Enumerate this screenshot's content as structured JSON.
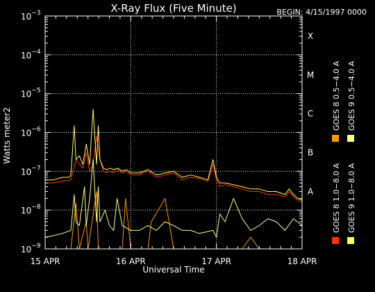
{
  "chart_data": {
    "type": "line",
    "title": "X-Ray Flux (Five Minute)",
    "begin_label": "BEGIN: 4/15/1997 0000",
    "xlabel": "Universal Time",
    "ylabel": "Watts meter2",
    "y_scale": "log",
    "ylim": [
      1e-09,
      0.001
    ],
    "xlim_days": [
      0,
      3
    ],
    "x_tick_labels": [
      "15 APR",
      "16 APR",
      "17 APR",
      "18 APR"
    ],
    "y_ticks": [
      {
        "base": "10",
        "exp": "−9"
      },
      {
        "base": "10",
        "exp": "−8"
      },
      {
        "base": "10",
        "exp": "−7"
      },
      {
        "base": "10",
        "exp": "−6"
      },
      {
        "base": "10",
        "exp": "−5"
      },
      {
        "base": "10",
        "exp": "−4"
      },
      {
        "base": "10",
        "exp": "−3"
      }
    ],
    "flare_classes": [
      "A",
      "B",
      "C",
      "M",
      "X"
    ],
    "grid": "dotted",
    "series": [
      {
        "name": "GOES 8  1.0−8.0 A",
        "color": "#ff3300",
        "x": [
          0.0,
          0.1,
          0.2,
          0.3,
          0.36,
          0.4,
          0.44,
          0.48,
          0.52,
          0.56,
          0.6,
          0.64,
          0.68,
          0.72,
          0.76,
          0.8,
          0.85,
          0.9,
          0.95,
          1.0,
          1.1,
          1.2,
          1.3,
          1.4,
          1.5,
          1.6,
          1.7,
          1.8,
          1.9,
          1.96,
          2.0,
          2.04,
          2.1,
          2.2,
          2.3,
          2.4,
          2.5,
          2.6,
          2.7,
          2.8,
          2.85,
          2.9,
          2.95,
          3.0
        ],
        "values": [
          5e-08,
          5e-08,
          5.5e-08,
          6e-08,
          2e-07,
          1.5e-07,
          1.2e-07,
          3e-07,
          1e-07,
          1.5e-07,
          8e-07,
          2e-07,
          1e-07,
          9e-08,
          1e-07,
          9e-08,
          1.1e-07,
          9e-08,
          1e-07,
          8e-08,
          8e-08,
          1e-07,
          7e-08,
          8e-08,
          9e-08,
          6e-08,
          7e-08,
          6.5e-08,
          5.5e-08,
          1.5e-07,
          6e-08,
          4e-08,
          4.5e-08,
          4e-08,
          3.5e-08,
          3e-08,
          3e-08,
          2.5e-08,
          2.5e-08,
          2.2e-08,
          3e-08,
          2.2e-08,
          1.8e-08,
          1.6e-08
        ]
      },
      {
        "name": "GOES 8  0.5−4.0 A",
        "color": "#ff9900",
        "x": [
          0.0,
          0.2,
          0.3,
          0.36,
          0.4,
          0.48,
          0.5,
          0.6,
          0.62,
          0.7,
          0.9,
          0.94,
          1.0,
          1.2,
          1.24,
          1.4,
          1.5,
          1.6,
          1.7,
          1.8,
          1.9,
          1.96,
          2.0,
          2.3,
          2.4,
          2.5,
          2.6,
          2.8,
          2.9,
          3.0
        ],
        "values": [
          1e-09,
          1e-09,
          1e-09,
          1.5e-08,
          1e-09,
          5e-09,
          1e-09,
          3e-08,
          1e-09,
          1e-09,
          1e-09,
          2e-08,
          1e-09,
          1e-09,
          5e-09,
          2e-08,
          1e-09,
          1e-09,
          1e-09,
          1e-09,
          1e-09,
          1e-09,
          1e-09,
          1e-09,
          2e-09,
          1e-09,
          1e-09,
          1e-09,
          1e-09,
          1e-09
        ]
      },
      {
        "name": "GOES 9  1.0−8.0 A",
        "color": "#ffff55",
        "x": [
          0.0,
          0.1,
          0.2,
          0.28,
          0.3,
          0.34,
          0.36,
          0.4,
          0.44,
          0.48,
          0.52,
          0.56,
          0.6,
          0.62,
          0.64,
          0.68,
          0.72,
          0.76,
          0.8,
          0.85,
          0.9,
          0.95,
          1.0,
          1.1,
          1.2,
          1.3,
          1.4,
          1.5,
          1.6,
          1.7,
          1.8,
          1.9,
          1.96,
          2.0,
          2.04,
          2.1,
          2.2,
          2.3,
          2.4,
          2.5,
          2.6,
          2.7,
          2.8,
          2.85,
          2.9,
          2.95,
          3.0
        ],
        "values": [
          6e-08,
          6e-08,
          7e-08,
          7e-08,
          8e-08,
          1.5e-06,
          2e-07,
          2.5e-07,
          1.5e-07,
          5e-07,
          1.5e-07,
          4e-06,
          1.5e-07,
          1.5e-06,
          2e-07,
          1.2e-07,
          1.1e-07,
          1.2e-07,
          1.1e-07,
          1.2e-07,
          1e-07,
          1.1e-07,
          9e-08,
          9e-08,
          1.1e-07,
          8e-08,
          9e-08,
          1e-07,
          7e-08,
          8e-08,
          7e-08,
          6e-08,
          2e-07,
          7e-08,
          5e-08,
          5e-08,
          4.5e-08,
          4e-08,
          3.5e-08,
          3.5e-08,
          3e-08,
          3e-08,
          2.5e-08,
          3.5e-08,
          2.5e-08,
          2e-08,
          1.8e-08
        ]
      },
      {
        "name": "GOES 9  0.5−4.0 A",
        "color": "#ffff88",
        "x": [
          0.0,
          0.1,
          0.2,
          0.3,
          0.34,
          0.36,
          0.4,
          0.46,
          0.48,
          0.52,
          0.56,
          0.6,
          0.62,
          0.64,
          0.7,
          0.75,
          0.8,
          0.84,
          0.9,
          1.0,
          1.1,
          1.2,
          1.3,
          1.4,
          1.5,
          1.6,
          1.7,
          1.8,
          1.96,
          2.0,
          2.04,
          2.1,
          2.2,
          2.3,
          2.4,
          2.5,
          2.6,
          2.7,
          2.8,
          2.9,
          3.0
        ],
        "values": [
          2e-09,
          2.2e-09,
          2.5e-09,
          3e-09,
          2.5e-08,
          5e-09,
          4e-09,
          4e-08,
          4e-09,
          2e-08,
          2e-07,
          5e-09,
          4e-08,
          5e-09,
          1e-08,
          4e-09,
          3e-09,
          2e-08,
          4e-09,
          3e-09,
          3e-09,
          4e-09,
          3e-09,
          5e-09,
          4e-09,
          3e-09,
          3e-09,
          2.5e-09,
          3e-09,
          2e-09,
          8e-09,
          5e-09,
          2e-08,
          6e-09,
          3e-09,
          4e-09,
          6e-09,
          5e-09,
          3e-09,
          6e-09,
          4e-09
        ]
      }
    ]
  }
}
